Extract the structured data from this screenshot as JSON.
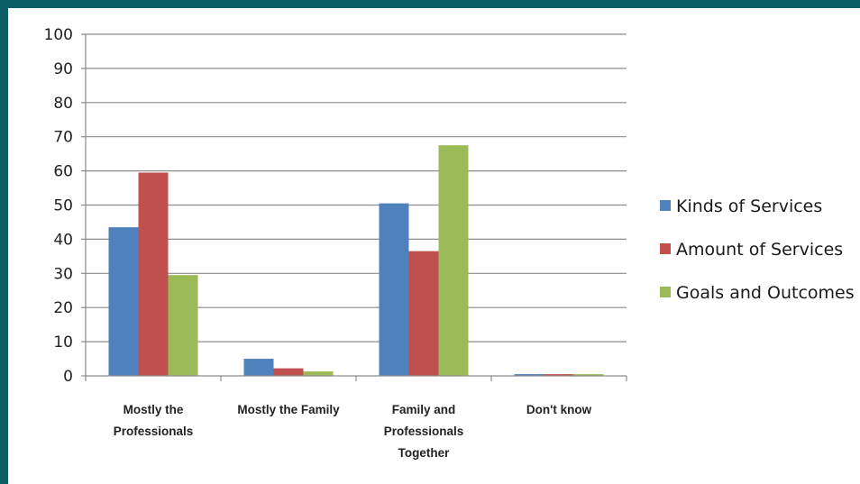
{
  "chart_data": {
    "type": "bar",
    "title": "",
    "xlabel": "",
    "ylabel": "",
    "ylim": [
      0,
      100
    ],
    "yticks": [
      "0",
      "10",
      "20",
      "30",
      "40",
      "50",
      "60",
      "70",
      "80",
      "90",
      "100"
    ],
    "categories": [
      [
        "Mostly the",
        "Professionals"
      ],
      [
        "Mostly the Family"
      ],
      [
        "Family and",
        "Professionals",
        "Together"
      ],
      [
        "Don't know"
      ]
    ],
    "series": [
      {
        "name": "Kinds of Services",
        "color": "#4f81bd",
        "values": [
          43.5,
          5,
          50.5,
          0.5
        ]
      },
      {
        "name": "Amount of Services",
        "color": "#c0504d",
        "values": [
          59.5,
          2.2,
          36.5,
          0.5
        ]
      },
      {
        "name": "Goals and Outcomes",
        "color": "#9bbb59",
        "values": [
          29.5,
          1.3,
          67.5,
          0.5
        ]
      }
    ],
    "grid": true,
    "legend": "right"
  }
}
